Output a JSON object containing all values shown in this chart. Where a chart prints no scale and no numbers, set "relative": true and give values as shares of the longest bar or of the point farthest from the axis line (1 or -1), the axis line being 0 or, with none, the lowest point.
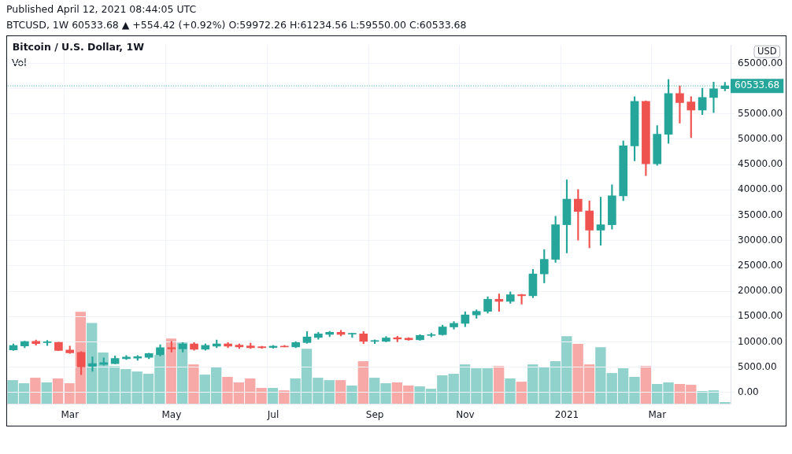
{
  "chart_data": [
    {
      "type": "candlestick",
      "title": "Bitcoin / U.S. Dollar, 1W",
      "subtitle": "BTCUSD, 1W  60533.68 ▲ +554.42 (+0.92%)  O:59972.26  H:61234.56  L:59550.00  C:60533.68",
      "ylabel": "USD",
      "annotations": [
        "Published April 12, 2021 08:44:05 UTC"
      ],
      "categories": [
        null,
        null,
        null,
        null,
        null,
        "Mar",
        null,
        null,
        null,
        null,
        null,
        null,
        null,
        null,
        "May",
        null,
        null,
        null,
        null,
        null,
        null,
        null,
        null,
        "Jul",
        null,
        null,
        null,
        null,
        null,
        null,
        null,
        null,
        "Sep",
        null,
        null,
        null,
        null,
        null,
        null,
        null,
        "Nov",
        null,
        null,
        null,
        null,
        null,
        null,
        null,
        null,
        "2021",
        null,
        null,
        null,
        null,
        null,
        null,
        null,
        "Mar",
        null,
        null,
        null,
        null,
        null,
        null
      ],
      "ohlc": [
        [
          8430,
          9600,
          8300,
          9300
        ],
        [
          9190,
          10150,
          8840,
          10060
        ],
        [
          10100,
          10360,
          9340,
          9650
        ],
        [
          9860,
          10280,
          9280,
          10010
        ],
        [
          9900,
          9950,
          8250,
          8280
        ],
        [
          8390,
          9150,
          7700,
          7830
        ],
        [
          7930,
          8090,
          3540,
          5050
        ],
        [
          5160,
          7020,
          4190,
          5700
        ],
        [
          5550,
          6830,
          5400,
          5920
        ],
        [
          5700,
          7220,
          5650,
          6720
        ],
        [
          6670,
          7320,
          6520,
          6980
        ],
        [
          6770,
          7320,
          6370,
          7070
        ],
        [
          6920,
          7750,
          6680,
          7680
        ],
        [
          7430,
          9450,
          7220,
          8840
        ],
        [
          8840,
          10100,
          7980,
          8590
        ],
        [
          8590,
          9860,
          7980,
          9600
        ],
        [
          9600,
          9860,
          8340,
          8540
        ],
        [
          8540,
          9600,
          8340,
          9300
        ],
        [
          9150,
          10360,
          8840,
          9600
        ],
        [
          9600,
          9860,
          8840,
          9150
        ],
        [
          9350,
          9600,
          8690,
          9000
        ],
        [
          9190,
          9750,
          8690,
          8840
        ],
        [
          9040,
          9140,
          8690,
          8840
        ],
        [
          8890,
          9300,
          8740,
          9150
        ],
        [
          9150,
          9300,
          8990,
          9000
        ],
        [
          9000,
          10060,
          8840,
          9860
        ],
        [
          9860,
          12030,
          9700,
          10970
        ],
        [
          10860,
          11890,
          10510,
          11570
        ],
        [
          11470,
          12080,
          11010,
          11880
        ],
        [
          11880,
          12280,
          11160,
          11470
        ],
        [
          11530,
          11700,
          10860,
          11620
        ],
        [
          11570,
          12030,
          9650,
          10100
        ],
        [
          10100,
          10400,
          9650,
          10250
        ],
        [
          10100,
          11050,
          10000,
          10770
        ],
        [
          10820,
          11120,
          10000,
          10560
        ],
        [
          10720,
          10820,
          10300,
          10410
        ],
        [
          10410,
          11420,
          10300,
          11270
        ],
        [
          11270,
          11720,
          10970,
          11420
        ],
        [
          11420,
          13300,
          11300,
          12940
        ],
        [
          12940,
          14000,
          12500,
          13650
        ],
        [
          13650,
          15930,
          12990,
          15320
        ],
        [
          15320,
          16320,
          14650,
          16020
        ],
        [
          16020,
          18900,
          15660,
          18400
        ],
        [
          18400,
          19460,
          16020,
          17990
        ],
        [
          17990,
          19870,
          17600,
          19310
        ],
        [
          19310,
          19400,
          17450,
          19100
        ],
        [
          19100,
          24320,
          18700,
          23410
        ],
        [
          23410,
          28220,
          21630,
          26290
        ],
        [
          26290,
          34790,
          25680,
          33120
        ],
        [
          33120,
          41960,
          27550,
          38170
        ],
        [
          38170,
          40090,
          30080,
          35740
        ],
        [
          35850,
          37820,
          28560,
          32050
        ],
        [
          32050,
          38580,
          29070,
          33120
        ],
        [
          33120,
          41000,
          32250,
          38830
        ],
        [
          38830,
          49650,
          37870,
          48690
        ],
        [
          48690,
          58400,
          45750,
          57490
        ],
        [
          57490,
          57600,
          42830,
          45150
        ],
        [
          45150,
          52690,
          44840,
          50970
        ],
        [
          50970,
          61790,
          49200,
          59010
        ],
        [
          59010,
          60530,
          53190,
          57240
        ],
        [
          57340,
          58400,
          50300,
          55760
        ],
        [
          55760,
          60070,
          54850,
          58250
        ],
        [
          58250,
          61290,
          55260,
          59972
        ],
        [
          59972.26,
          61234.56,
          59550.0,
          60533.68
        ]
      ],
      "colors": [
        "#26a69a",
        "#26a69a",
        "#ef5350",
        "#26a69a",
        "#ef5350",
        "#ef5350",
        "#ef5350",
        "#26a69a",
        "#26a69a",
        "#26a69a",
        "#26a69a",
        "#26a69a",
        "#26a69a",
        "#26a69a",
        "#ef5350",
        "#26a69a",
        "#ef5350",
        "#26a69a",
        "#26a69a",
        "#ef5350",
        "#ef5350",
        "#ef5350",
        "#ef5350",
        "#26a69a",
        "#ef5350",
        "#26a69a",
        "#26a69a",
        "#26a69a",
        "#26a69a",
        "#ef5350",
        "#26a69a",
        "#ef5350",
        "#26a69a",
        "#26a69a",
        "#ef5350",
        "#ef5350",
        "#26a69a",
        "#26a69a",
        "#26a69a",
        "#26a69a",
        "#26a69a",
        "#26a69a",
        "#26a69a",
        "#ef5350",
        "#26a69a",
        "#ef5350",
        "#26a69a",
        "#26a69a",
        "#26a69a",
        "#26a69a",
        "#ef5350",
        "#ef5350",
        "#26a69a",
        "#26a69a",
        "#26a69a",
        "#26a69a",
        "#ef5350",
        "#26a69a",
        "#26a69a",
        "#ef5350",
        "#ef5350",
        "#26a69a",
        "#26a69a",
        "#26a69a"
      ],
      "ylim": [
        -2200,
        68600
      ],
      "yticks": [
        {
          "value": 0,
          "label": "0.00"
        },
        {
          "value": 5000,
          "label": "5000.00"
        },
        {
          "value": 10000,
          "label": "10000.00"
        },
        {
          "value": 15000,
          "label": "15000.00"
        },
        {
          "value": 20000,
          "label": "20000.00"
        },
        {
          "value": 25000,
          "label": "25000.00"
        },
        {
          "value": 30000,
          "label": "30000.00"
        },
        {
          "value": 35000,
          "label": "35000.00"
        },
        {
          "value": 40000,
          "label": "40000.00"
        },
        {
          "value": 45000,
          "label": "45000.00"
        },
        {
          "value": 50000,
          "label": "50000.00"
        },
        {
          "value": 55000,
          "label": "55000.00"
        },
        {
          "value": 60000,
          "label": null
        },
        {
          "value": 65000,
          "label": "65000.00"
        }
      ],
      "ref_lines": [
        {
          "axis": "y",
          "value": 60533.68,
          "label": "60533.68",
          "color": "#26a69a",
          "line_style": "dotted"
        }
      ],
      "grid": true
    },
    {
      "type": "bar",
      "relative": true,
      "tick_labels": false,
      "annotations": [
        "Vol"
      ],
      "categories": [
        null,
        null,
        null,
        null,
        null,
        null,
        null,
        null,
        null,
        null,
        null,
        null,
        null,
        null,
        null,
        null,
        null,
        null,
        null,
        null,
        null,
        null,
        null,
        null,
        null,
        null,
        null,
        null,
        null,
        null,
        null,
        null,
        null,
        null,
        null,
        null,
        null,
        null,
        null,
        null,
        null,
        null,
        null,
        null,
        null,
        null,
        null,
        null,
        null,
        null,
        null,
        null,
        null,
        null,
        null,
        null,
        null,
        null,
        null,
        null,
        null,
        null,
        null,
        null
      ],
      "values": [
        0.256,
        0.222,
        0.282,
        0.231,
        0.274,
        0.222,
        1,
        0.878,
        0.556,
        0.41,
        0.376,
        0.35,
        0.325,
        0.53,
        0.709,
        0.667,
        0.427,
        0.316,
        0.402,
        0.291,
        0.231,
        0.274,
        0.171,
        0.171,
        0.145,
        0.274,
        0.598,
        0.282,
        0.256,
        0.256,
        0.197,
        0.462,
        0.282,
        0.222,
        0.231,
        0.197,
        0.188,
        0.162,
        0.308,
        0.325,
        0.427,
        0.385,
        0.385,
        0.41,
        0.274,
        0.239,
        0.427,
        0.402,
        0.462,
        0.735,
        0.65,
        0.427,
        0.615,
        0.333,
        0.385,
        0.291,
        0.41,
        0.214,
        0.231,
        0.214,
        0.205,
        0.137,
        0.145,
        0.017
      ],
      "colors": [
        "#92d2cc",
        "#92d2cc",
        "#f7a9a7",
        "#92d2cc",
        "#f7a9a7",
        "#f7a9a7",
        "#f7a9a7",
        "#92d2cc",
        "#92d2cc",
        "#92d2cc",
        "#92d2cc",
        "#92d2cc",
        "#92d2cc",
        "#92d2cc",
        "#f7a9a7",
        "#92d2cc",
        "#f7a9a7",
        "#92d2cc",
        "#92d2cc",
        "#f7a9a7",
        "#f7a9a7",
        "#f7a9a7",
        "#f7a9a7",
        "#92d2cc",
        "#f7a9a7",
        "#92d2cc",
        "#92d2cc",
        "#92d2cc",
        "#92d2cc",
        "#f7a9a7",
        "#92d2cc",
        "#f7a9a7",
        "#92d2cc",
        "#92d2cc",
        "#f7a9a7",
        "#f7a9a7",
        "#92d2cc",
        "#92d2cc",
        "#92d2cc",
        "#92d2cc",
        "#92d2cc",
        "#92d2cc",
        "#92d2cc",
        "#f7a9a7",
        "#92d2cc",
        "#f7a9a7",
        "#92d2cc",
        "#92d2cc",
        "#92d2cc",
        "#92d2cc",
        "#f7a9a7",
        "#f7a9a7",
        "#92d2cc",
        "#92d2cc",
        "#92d2cc",
        "#92d2cc",
        "#f7a9a7",
        "#92d2cc",
        "#92d2cc",
        "#f7a9a7",
        "#f7a9a7",
        "#92d2cc",
        "#92d2cc",
        "#92d2cc"
      ]
    }
  ]
}
